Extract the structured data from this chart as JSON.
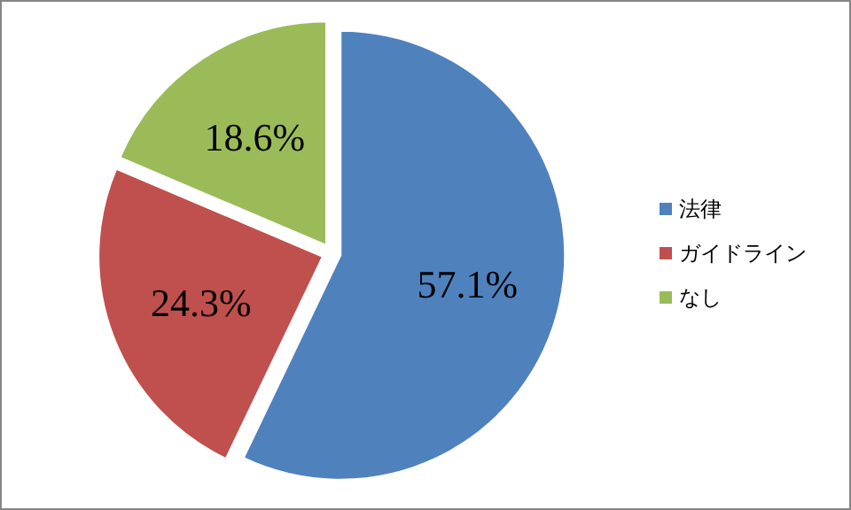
{
  "chart_data": {
    "type": "pie",
    "categories": [
      "法律",
      "ガイドライン",
      "なし"
    ],
    "values": [
      57.1,
      24.3,
      18.6
    ],
    "colors": [
      "#4f81bd",
      "#c0504d",
      "#9bbb59"
    ],
    "value_labels": [
      "57.1%",
      "24.3%",
      "18.6%"
    ],
    "legend": "right"
  }
}
